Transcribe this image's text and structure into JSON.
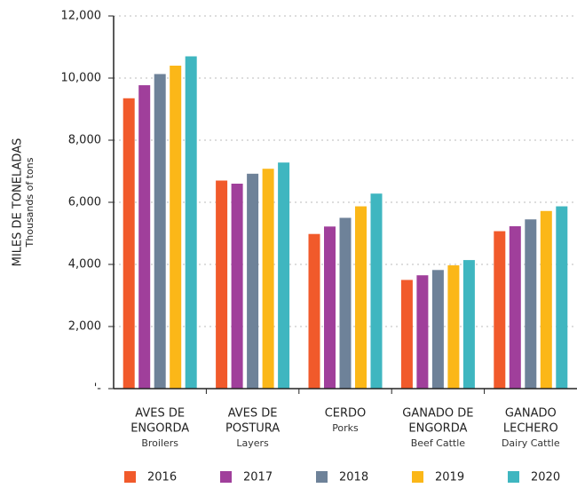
{
  "chart_data": {
    "type": "bar",
    "y_label": "MILES DE TONELADAS",
    "y_sublabel": "Thousands of tons",
    "categories": [
      [
        "AVES DE",
        "ENGORDA"
      ],
      [
        "AVES DE",
        "POSTURA"
      ],
      [
        "CERDO"
      ],
      [
        "GANADO DE",
        "ENGORDA"
      ],
      [
        "GANADO",
        "LECHERO"
      ]
    ],
    "category_subtitles": [
      "Broilers",
      "Layers",
      "Porks",
      "Beef Cattle",
      "Dairy Cattle"
    ],
    "series": [
      {
        "name": "2016",
        "color": "#f15a2b",
        "values": [
          9350,
          6700,
          4980,
          3500,
          5070
        ]
      },
      {
        "name": "2017",
        "color": "#a03f9b",
        "values": [
          9770,
          6600,
          5220,
          3650,
          5230
        ]
      },
      {
        "name": "2018",
        "color": "#6e8299",
        "values": [
          10130,
          6920,
          5500,
          3820,
          5450
        ]
      },
      {
        "name": "2019",
        "color": "#fbb718",
        "values": [
          10400,
          7080,
          5870,
          3970,
          5720
        ]
      },
      {
        "name": "2020",
        "color": "#3fb6c0",
        "values": [
          10700,
          7280,
          6280,
          4140,
          5870
        ]
      }
    ],
    "ylim": [
      0,
      12000
    ],
    "yticks": [
      {
        "value": 0,
        "label": "'-"
      },
      {
        "value": 2000,
        "label": "2,000"
      },
      {
        "value": 4000,
        "label": "4,000"
      },
      {
        "value": 6000,
        "label": "6,000"
      },
      {
        "value": 8000,
        "label": "8,000"
      },
      {
        "value": 10000,
        "label": "10,000"
      },
      {
        "value": 12000,
        "label": "12,000"
      }
    ],
    "grid": true
  }
}
